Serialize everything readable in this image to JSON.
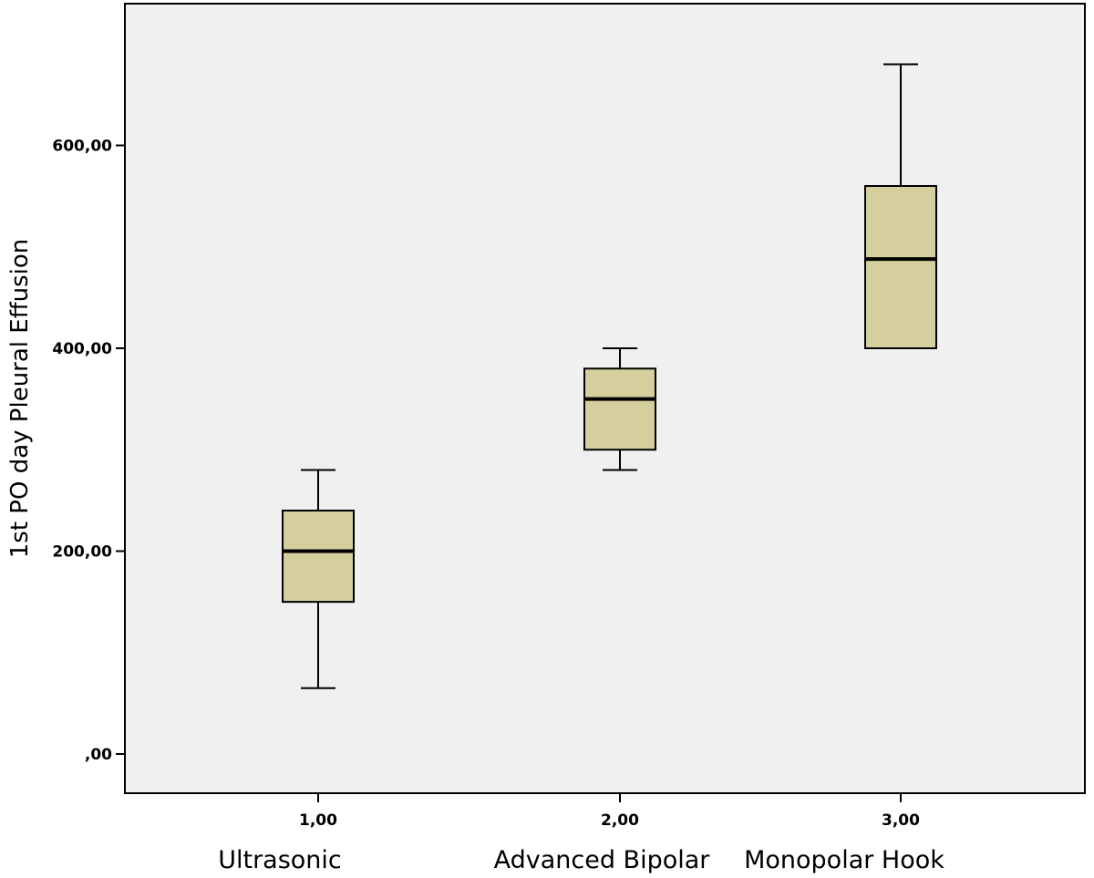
{
  "chart_data": {
    "type": "box",
    "ylabel": "1st PO day Pleural Effusion",
    "xlabel": "",
    "ylim": [
      0,
      740
    ],
    "y_ticks": [
      {
        "value": 0,
        "label": ",00"
      },
      {
        "value": 200,
        "label": "200,00"
      },
      {
        "value": 400,
        "label": "400,00"
      },
      {
        "value": 600,
        "label": "600,00"
      }
    ],
    "categories": [
      {
        "code": "1,00",
        "label": "Ultrasonic",
        "whisker_low": 65,
        "q1": 150,
        "median": 200,
        "q3": 240,
        "whisker_high": 280
      },
      {
        "code": "2,00",
        "label": "Advanced Bipolar",
        "whisker_low": 280,
        "q1": 300,
        "median": 350,
        "q3": 380,
        "whisker_high": 400
      },
      {
        "code": "3,00",
        "label": "Monopolar Hook",
        "whisker_low": 400,
        "q1": 400,
        "median": 488,
        "q3": 560,
        "whisker_high": 680
      }
    ],
    "grid": false,
    "box_color": "#d4cf9c",
    "plot_background": "#f0f0f0"
  }
}
